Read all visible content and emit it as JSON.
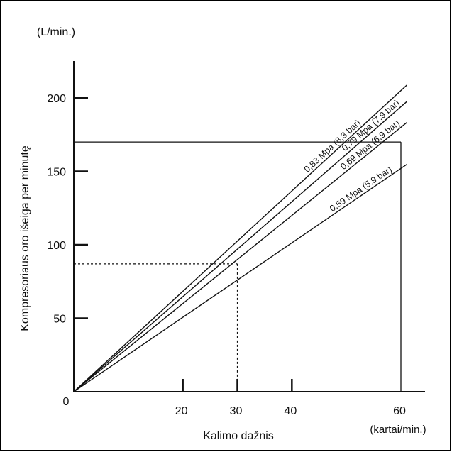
{
  "chart_data": {
    "type": "line",
    "xlabel": "Kalimo dažnis",
    "x_unit": "(kartai/min.)",
    "ylabel": "Kompresoriaus oro išeiga per minutę",
    "y_unit": "(L/min.)",
    "xlim": [
      0,
      60
    ],
    "ylim": [
      0,
      200
    ],
    "x_ticks": [
      20,
      30,
      40,
      60
    ],
    "y_ticks": [
      50,
      100,
      150,
      200
    ],
    "origin_label": "0",
    "series": [
      {
        "name": "0,83 Mpa (8,3 bar)",
        "x": [
          0,
          60
        ],
        "y": [
          0,
          205
        ]
      },
      {
        "name": "0,79 Mpa (7,9 bar)",
        "x": [
          0,
          60
        ],
        "y": [
          0,
          194
        ]
      },
      {
        "name": "0,69 Mpa (6,9 bar)",
        "x": [
          0,
          60
        ],
        "y": [
          0,
          180
        ]
      },
      {
        "name": "0,59 Mpa (5,9 bar)",
        "x": [
          0,
          60
        ],
        "y": [
          0,
          152
        ]
      }
    ],
    "reference_lines": {
      "solid_box": {
        "x": 60,
        "y": 170
      },
      "dashed_guide": {
        "x": 30,
        "y": 87
      }
    },
    "grid": false,
    "legend": "inline labels along lines"
  },
  "colors": {
    "line": "#111111",
    "background": "#ffffff"
  }
}
